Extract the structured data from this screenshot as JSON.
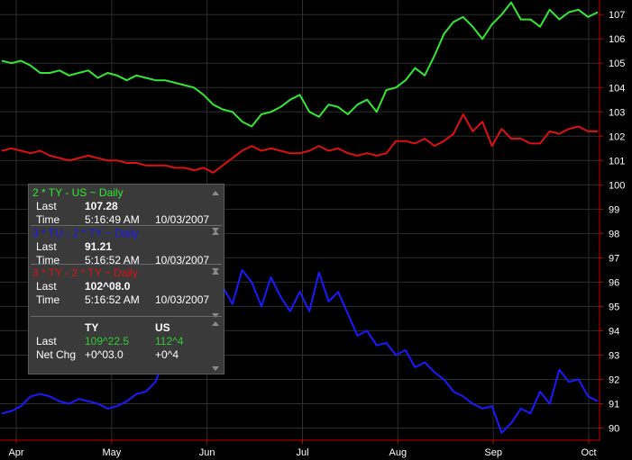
{
  "chart_data": {
    "type": "line",
    "x_ticks": [
      "Apr",
      "May",
      "Jun",
      "Jul",
      "Aug",
      "Sep",
      "Oct"
    ],
    "y_ticks": [
      90,
      91,
      92,
      93,
      94,
      95,
      96,
      97,
      98,
      99,
      100,
      101,
      102,
      103,
      104,
      105,
      106,
      107
    ],
    "ylim": [
      89.5,
      107.6
    ],
    "xlim": [
      0,
      186
    ],
    "grid": true,
    "series": [
      {
        "name": "2 * TY - US ~ Daily",
        "color": "#33e833",
        "points": [
          [
            0,
            105.1
          ],
          [
            3,
            105.0
          ],
          [
            6,
            105.1
          ],
          [
            9,
            104.9
          ],
          [
            12,
            104.6
          ],
          [
            15,
            104.6
          ],
          [
            18,
            104.7
          ],
          [
            21,
            104.5
          ],
          [
            24,
            104.6
          ],
          [
            27,
            104.7
          ],
          [
            30,
            104.4
          ],
          [
            33,
            104.6
          ],
          [
            36,
            104.5
          ],
          [
            39,
            104.3
          ],
          [
            42,
            104.5
          ],
          [
            45,
            104.4
          ],
          [
            48,
            104.3
          ],
          [
            51,
            104.3
          ],
          [
            54,
            104.2
          ],
          [
            57,
            104.1
          ],
          [
            60,
            104.0
          ],
          [
            63,
            103.7
          ],
          [
            66,
            103.3
          ],
          [
            69,
            103.1
          ],
          [
            72,
            103.0
          ],
          [
            75,
            102.6
          ],
          [
            78,
            102.4
          ],
          [
            81,
            102.9
          ],
          [
            84,
            103.0
          ],
          [
            87,
            103.2
          ],
          [
            90,
            103.5
          ],
          [
            93,
            103.7
          ],
          [
            96,
            103.0
          ],
          [
            99,
            102.8
          ],
          [
            102,
            103.3
          ],
          [
            105,
            103.2
          ],
          [
            108,
            102.9
          ],
          [
            111,
            103.3
          ],
          [
            114,
            103.5
          ],
          [
            117,
            103.0
          ],
          [
            120,
            103.9
          ],
          [
            123,
            104.0
          ],
          [
            126,
            104.3
          ],
          [
            129,
            104.8
          ],
          [
            132,
            104.5
          ],
          [
            135,
            105.3
          ],
          [
            138,
            106.2
          ],
          [
            141,
            106.7
          ],
          [
            144,
            106.9
          ],
          [
            147,
            106.5
          ],
          [
            150,
            106.0
          ],
          [
            153,
            106.6
          ],
          [
            156,
            107.0
          ],
          [
            159,
            107.5
          ],
          [
            162,
            106.8
          ],
          [
            165,
            106.8
          ],
          [
            168,
            106.5
          ],
          [
            171,
            107.2
          ],
          [
            174,
            106.8
          ],
          [
            177,
            107.1
          ],
          [
            180,
            107.2
          ],
          [
            183,
            106.9
          ],
          [
            186,
            107.1
          ]
        ]
      },
      {
        "name": "3 * TU - 2 * TY ~ Daily",
        "color": "#1a1aff",
        "points": [
          [
            0,
            90.6
          ],
          [
            3,
            90.7
          ],
          [
            6,
            90.9
          ],
          [
            9,
            91.3
          ],
          [
            12,
            91.4
          ],
          [
            15,
            91.3
          ],
          [
            18,
            91.1
          ],
          [
            21,
            91.0
          ],
          [
            24,
            91.2
          ],
          [
            27,
            91.1
          ],
          [
            30,
            91.0
          ],
          [
            33,
            90.8
          ],
          [
            36,
            90.9
          ],
          [
            39,
            91.1
          ],
          [
            42,
            91.4
          ],
          [
            45,
            91.5
          ],
          [
            48,
            91.9
          ],
          [
            51,
            93.0
          ],
          [
            54,
            93.8
          ],
          [
            57,
            94.5
          ],
          [
            60,
            94.8
          ],
          [
            63,
            95.5
          ],
          [
            66,
            96.4
          ],
          [
            69,
            95.8
          ],
          [
            72,
            95.1
          ],
          [
            75,
            96.5
          ],
          [
            78,
            96.0
          ],
          [
            81,
            95.0
          ],
          [
            84,
            96.2
          ],
          [
            87,
            95.4
          ],
          [
            90,
            94.8
          ],
          [
            93,
            95.6
          ],
          [
            96,
            94.8
          ],
          [
            99,
            96.4
          ],
          [
            102,
            95.2
          ],
          [
            105,
            95.6
          ],
          [
            108,
            94.7
          ],
          [
            111,
            93.8
          ],
          [
            114,
            94.0
          ],
          [
            117,
            93.4
          ],
          [
            120,
            93.5
          ],
          [
            123,
            93.0
          ],
          [
            126,
            93.2
          ],
          [
            129,
            92.5
          ],
          [
            132,
            92.7
          ],
          [
            135,
            92.3
          ],
          [
            138,
            92.0
          ],
          [
            141,
            91.5
          ],
          [
            144,
            91.3
          ],
          [
            147,
            91.0
          ],
          [
            150,
            90.8
          ],
          [
            153,
            90.9
          ],
          [
            156,
            89.8
          ],
          [
            159,
            90.2
          ],
          [
            162,
            90.8
          ],
          [
            165,
            90.6
          ],
          [
            168,
            91.5
          ],
          [
            171,
            91.0
          ],
          [
            174,
            92.4
          ],
          [
            177,
            91.9
          ],
          [
            180,
            92.0
          ],
          [
            183,
            91.3
          ],
          [
            186,
            91.1
          ]
        ]
      },
      {
        "name": "3 * TY - 2 * TY ~ Daily",
        "color": "#dd1111",
        "points": [
          [
            0,
            101.4
          ],
          [
            3,
            101.5
          ],
          [
            6,
            101.4
          ],
          [
            9,
            101.3
          ],
          [
            12,
            101.4
          ],
          [
            15,
            101.2
          ],
          [
            18,
            101.1
          ],
          [
            21,
            101.0
          ],
          [
            24,
            101.1
          ],
          [
            27,
            101.2
          ],
          [
            30,
            101.1
          ],
          [
            33,
            101.0
          ],
          [
            36,
            101.0
          ],
          [
            39,
            100.9
          ],
          [
            42,
            100.9
          ],
          [
            45,
            100.8
          ],
          [
            48,
            100.8
          ],
          [
            51,
            100.8
          ],
          [
            54,
            100.7
          ],
          [
            57,
            100.7
          ],
          [
            60,
            100.6
          ],
          [
            63,
            100.7
          ],
          [
            66,
            100.5
          ],
          [
            69,
            100.8
          ],
          [
            72,
            101.1
          ],
          [
            75,
            101.4
          ],
          [
            78,
            101.6
          ],
          [
            81,
            101.4
          ],
          [
            84,
            101.5
          ],
          [
            87,
            101.4
          ],
          [
            90,
            101.3
          ],
          [
            93,
            101.3
          ],
          [
            96,
            101.4
          ],
          [
            99,
            101.6
          ],
          [
            102,
            101.4
          ],
          [
            105,
            101.5
          ],
          [
            108,
            101.3
          ],
          [
            111,
            101.2
          ],
          [
            114,
            101.3
          ],
          [
            117,
            101.2
          ],
          [
            120,
            101.3
          ],
          [
            123,
            101.8
          ],
          [
            126,
            101.8
          ],
          [
            129,
            101.7
          ],
          [
            132,
            101.9
          ],
          [
            135,
            101.6
          ],
          [
            138,
            101.8
          ],
          [
            141,
            102.1
          ],
          [
            144,
            102.9
          ],
          [
            147,
            102.2
          ],
          [
            150,
            102.6
          ],
          [
            153,
            101.6
          ],
          [
            156,
            102.3
          ],
          [
            159,
            101.9
          ],
          [
            162,
            101.9
          ],
          [
            165,
            101.7
          ],
          [
            168,
            101.7
          ],
          [
            171,
            102.2
          ],
          [
            174,
            102.1
          ],
          [
            177,
            102.3
          ],
          [
            180,
            102.4
          ],
          [
            183,
            102.2
          ],
          [
            186,
            102.2
          ]
        ]
      }
    ]
  },
  "panel": {
    "s1": {
      "title": "2 * TY - US ~ Daily",
      "color": "#33e833",
      "last_label": "Last",
      "last_value": "107.28",
      "time_label": "Time",
      "time_value": "5:16:49 AM",
      "date_value": "10/03/2007"
    },
    "s2": {
      "title": "3 * TU - 2 * TY ~ Daily",
      "color": "#1a1aff",
      "last_label": "Last",
      "last_value": "91.21",
      "time_label": "Time",
      "time_value": "5:16:52 AM",
      "date_value": "10/03/2007"
    },
    "s3": {
      "title": "3 * TY - 2 * TY ~ Daily",
      "color": "#dd1111",
      "last_label": "Last",
      "last_value": "102^08.0",
      "time_label": "Time",
      "time_value": "5:16:52 AM",
      "date_value": "10/03/2007"
    },
    "s4": {
      "col1": "TY",
      "col2": "US",
      "last_label": "Last",
      "last1": "109^22.5",
      "last2": "112^4",
      "chg_label": "Net Chg",
      "chg1": "+0^03.0",
      "chg2": "+0^4",
      "last_color": "#33cc33"
    }
  }
}
